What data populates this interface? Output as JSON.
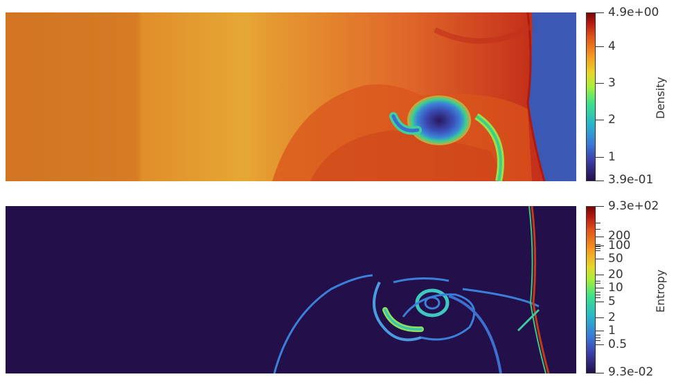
{
  "density": {
    "title": "Density",
    "max_label": "4.9e+00",
    "min_label": "3.9e-01",
    "ticks": [
      "4",
      "3",
      "2",
      "1"
    ],
    "range": [
      0.39,
      4.9
    ]
  },
  "entropy": {
    "title": "Entropy",
    "max_label": "9.3e+02",
    "min_label": "9.3e-02",
    "ticks": [
      "200",
      "100",
      "50",
      "20",
      "10",
      "5",
      "2",
      "1",
      "0.5"
    ],
    "range": [
      0.093,
      930
    ],
    "scale": "log"
  },
  "colormap": [
    "#23104a",
    "#3b3fa8",
    "#3b79d9",
    "#29b6c9",
    "#3ce08a",
    "#a6ef3a",
    "#e7d62a",
    "#f59a1f",
    "#e0521a",
    "#b41a10",
    "#7a0506"
  ]
}
